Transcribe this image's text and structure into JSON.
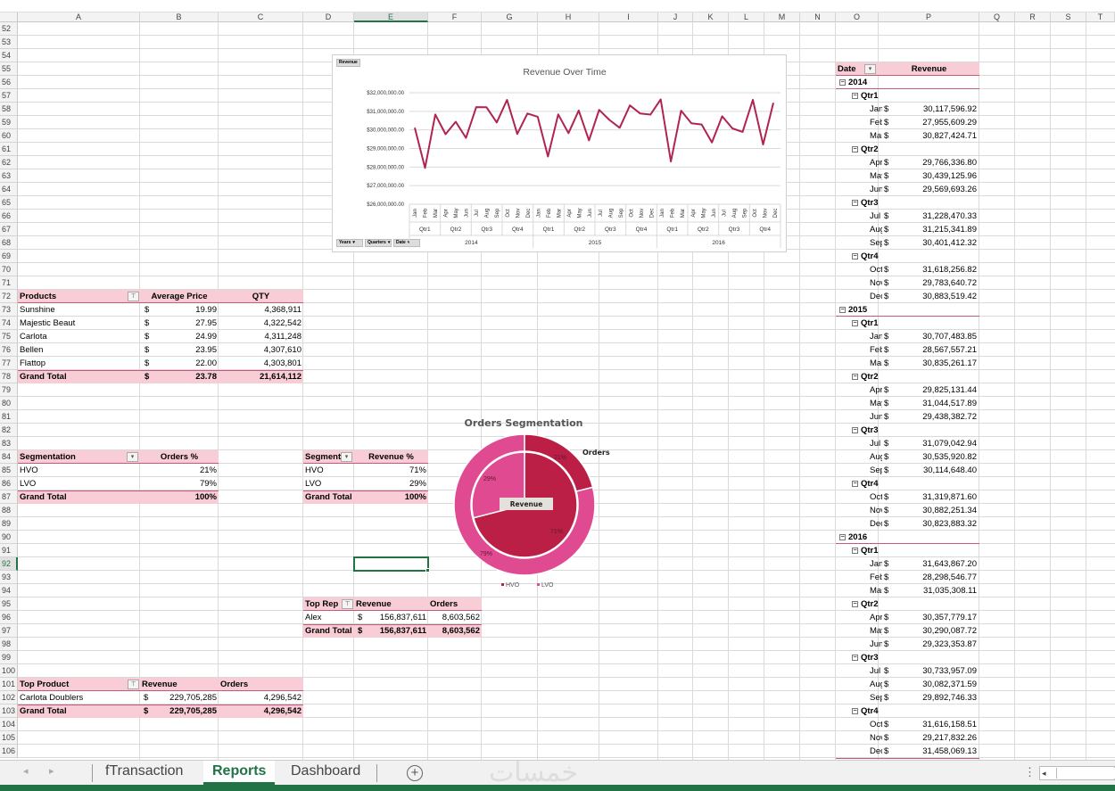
{
  "grid": {
    "columns": [
      "A",
      "B",
      "C",
      "D",
      "E",
      "F",
      "G",
      "H",
      "I",
      "J",
      "K",
      "L",
      "M",
      "N",
      "O",
      "P",
      "Q",
      "R",
      "S",
      "T"
    ],
    "rows": [
      52,
      53,
      54,
      55,
      56,
      57,
      58,
      59,
      60,
      61,
      62,
      63,
      64,
      65,
      66,
      67,
      68,
      69,
      70,
      71,
      72,
      73,
      74,
      75,
      76,
      77,
      78,
      79,
      80,
      81,
      82,
      83,
      84,
      85,
      86,
      87,
      88,
      89,
      90,
      91,
      92,
      93,
      94,
      95,
      96,
      97,
      98,
      99,
      100,
      101,
      102,
      103,
      104,
      105,
      106
    ],
    "selected_cell": "E92"
  },
  "products_pivot": {
    "headers": [
      "Products",
      "Average Price",
      "QTY"
    ],
    "rows": [
      {
        "name": "Sunshine",
        "currency": "$",
        "price": "19.99",
        "qty": "4,368,911"
      },
      {
        "name": "Majestic Beaut",
        "currency": "$",
        "price": "27.95",
        "qty": "4,322,542"
      },
      {
        "name": "Carlota",
        "currency": "$",
        "price": "24.99",
        "qty": "4,311,248"
      },
      {
        "name": "Bellen",
        "currency": "$",
        "price": "23.95",
        "qty": "4,307,610"
      },
      {
        "name": "Flattop",
        "currency": "$",
        "price": "22.00",
        "qty": "4,303,801"
      }
    ],
    "total": {
      "name": "Grand Total",
      "currency": "$",
      "price": "23.78",
      "qty": "21,614,112"
    }
  },
  "segmentation_orders": {
    "headers": [
      "Segmentation",
      "Orders %"
    ],
    "rows": [
      {
        "name": "HVO",
        "value": "21%"
      },
      {
        "name": "LVO",
        "value": "79%"
      }
    ],
    "total": {
      "name": "Grand Total",
      "value": "100%"
    }
  },
  "segmentation_revenue": {
    "headers": [
      "Segmentation",
      "Revenue %"
    ],
    "rows": [
      {
        "name": "HVO",
        "value": "71%"
      },
      {
        "name": "LVO",
        "value": "29%"
      }
    ],
    "total": {
      "name": "Grand Total",
      "value": "100%"
    }
  },
  "top_rep": {
    "headers": [
      "Top Rep",
      "Revenue",
      "Orders"
    ],
    "rows": [
      {
        "name": "Alex",
        "currency": "$",
        "revenue": "156,837,611",
        "orders": "8,603,562"
      }
    ],
    "total": {
      "name": "Grand Total",
      "currency": "$",
      "revenue": "156,837,611",
      "orders": "8,603,562"
    }
  },
  "top_product": {
    "headers": [
      "Top Product",
      "Revenue",
      "Orders"
    ],
    "rows": [
      {
        "name": "Carlota Doublers",
        "currency": "$",
        "revenue": "229,705,285",
        "orders": "4,296,542"
      }
    ],
    "total": {
      "name": "Grand Total",
      "currency": "$",
      "revenue": "229,705,285",
      "orders": "4,296,542"
    }
  },
  "date_pivot": {
    "headers": [
      "Date",
      "Revenue"
    ],
    "currency": "$",
    "years": [
      {
        "year": "2014",
        "quarters": [
          {
            "name": "Qtr1",
            "months": [
              {
                "m": "Jan",
                "v": "30,117,596.92"
              },
              {
                "m": "Feb",
                "v": "27,955,609.29"
              },
              {
                "m": "Mar",
                "v": "30,827,424.71"
              }
            ]
          },
          {
            "name": "Qtr2",
            "months": [
              {
                "m": "Apr",
                "v": "29,766,336.80"
              },
              {
                "m": "May",
                "v": "30,439,125.96"
              },
              {
                "m": "Jun",
                "v": "29,569,693.26"
              }
            ]
          },
          {
            "name": "Qtr3",
            "months": [
              {
                "m": "Jul",
                "v": "31,228,470.33"
              },
              {
                "m": "Aug",
                "v": "31,215,341.89"
              },
              {
                "m": "Sep",
                "v": "30,401,412.32"
              }
            ]
          },
          {
            "name": "Qtr4",
            "months": [
              {
                "m": "Oct",
                "v": "31,618,256.82"
              },
              {
                "m": "Nov",
                "v": "29,783,640.72"
              },
              {
                "m": "Dec",
                "v": "30,883,519.42"
              }
            ]
          }
        ]
      },
      {
        "year": "2015",
        "quarters": [
          {
            "name": "Qtr1",
            "months": [
              {
                "m": "Jan",
                "v": "30,707,483.85"
              },
              {
                "m": "Feb",
                "v": "28,567,557.21"
              },
              {
                "m": "Mar",
                "v": "30,835,261.17"
              }
            ]
          },
          {
            "name": "Qtr2",
            "months": [
              {
                "m": "Apr",
                "v": "29,825,131.44"
              },
              {
                "m": "May",
                "v": "31,044,517.89"
              },
              {
                "m": "Jun",
                "v": "29,438,382.72"
              }
            ]
          },
          {
            "name": "Qtr3",
            "months": [
              {
                "m": "Jul",
                "v": "31,079,042.94"
              },
              {
                "m": "Aug",
                "v": "30,535,920.82"
              },
              {
                "m": "Sep",
                "v": "30,114,648.40"
              }
            ]
          },
          {
            "name": "Qtr4",
            "months": [
              {
                "m": "Oct",
                "v": "31,319,871.60"
              },
              {
                "m": "Nov",
                "v": "30,882,251.34"
              },
              {
                "m": "Dec",
                "v": "30,823,883.32"
              }
            ]
          }
        ]
      },
      {
        "year": "2016",
        "quarters": [
          {
            "name": "Qtr1",
            "months": [
              {
                "m": "Jan",
                "v": "31,643,867.20"
              },
              {
                "m": "Feb",
                "v": "28,298,546.77"
              },
              {
                "m": "Mar",
                "v": "31,035,308.11"
              }
            ]
          },
          {
            "name": "Qtr2",
            "months": [
              {
                "m": "Apr",
                "v": "30,357,779.17"
              },
              {
                "m": "May",
                "v": "30,290,087.72"
              },
              {
                "m": "Jun",
                "v": "29,323,353.87"
              }
            ]
          },
          {
            "name": "Qtr3",
            "months": [
              {
                "m": "Jul",
                "v": "30,733,957.09"
              },
              {
                "m": "Aug",
                "v": "30,082,371.59"
              },
              {
                "m": "Sep",
                "v": "29,892,746.33"
              }
            ]
          },
          {
            "name": "Qtr4",
            "months": [
              {
                "m": "Oct",
                "v": "31,616,158.51"
              },
              {
                "m": "Nov",
                "v": "29,217,832.26"
              },
              {
                "m": "Dec",
                "v": "31,458,069.13"
              }
            ]
          }
        ]
      }
    ]
  },
  "chart_data": [
    {
      "type": "line",
      "title": "Revenue Over Time",
      "field_buttons": {
        "value": "Revenue",
        "axis": [
          "Years",
          "Quarters",
          "Date"
        ]
      },
      "years": [
        "2014",
        "2015",
        "2016"
      ],
      "quarters": [
        "Qtr1",
        "Qtr2",
        "Qtr3",
        "Qtr4"
      ],
      "months": [
        "Jan",
        "Feb",
        "Mar",
        "Apr",
        "May",
        "Jun",
        "Jul",
        "Aug",
        "Sep",
        "Oct",
        "Nov",
        "Dec"
      ],
      "y_ticks": [
        "$26,000,000.00",
        "$27,000,000.00",
        "$28,000,000.00",
        "$29,000,000.00",
        "$30,000,000.00",
        "$31,000,000.00",
        "$32,000,000.00"
      ],
      "ylim": [
        26000000,
        32000000
      ],
      "grid": true,
      "line_color": "#b0244f",
      "values": [
        30117596.92,
        27955609.29,
        30827424.71,
        29766336.8,
        30439125.96,
        29569693.26,
        31228470.33,
        31215341.89,
        30401412.32,
        31618256.82,
        29783640.72,
        30883519.42,
        30707483.85,
        28567557.21,
        30835261.17,
        29825131.44,
        31044517.89,
        29438382.72,
        31079042.94,
        30535920.82,
        30114648.4,
        31319871.6,
        30882251.34,
        30823883.32,
        31643867.2,
        28298546.77,
        31035308.11,
        30357779.17,
        30290087.72,
        29323353.87,
        30733957.09,
        30082371.59,
        29892746.33,
        31616158.51,
        29217832.26,
        31458069.13
      ]
    },
    {
      "type": "pie",
      "title": "Orders Segmentation",
      "legend": [
        "HVO",
        "LVO"
      ],
      "legend_placement": "bottom",
      "colors": {
        "HVO": "#bb1f45",
        "LVO": "#e04a91"
      },
      "rings": [
        {
          "name": "Orders",
          "values": [
            21,
            79
          ],
          "labels": [
            "21%",
            "79%"
          ]
        },
        {
          "name": "Revenue",
          "values": [
            71,
            29
          ],
          "labels": [
            "71%",
            "29%"
          ]
        }
      ]
    }
  ],
  "sheet_tabs": {
    "tabs": [
      "fTransaction",
      "Reports",
      "Dashboard"
    ],
    "active": "Reports",
    "add_icon": "plus-circle-icon"
  },
  "watermark": "خمسات"
}
